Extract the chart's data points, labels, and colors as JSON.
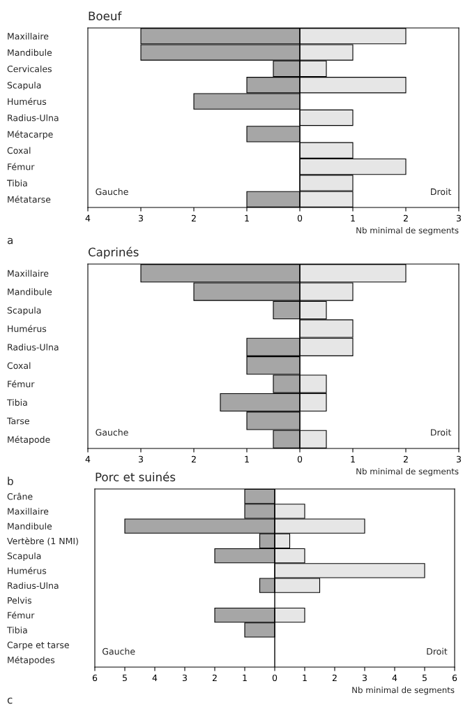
{
  "chart_data": [
    {
      "type": "bar",
      "orientation": "horizontal",
      "stacked": true,
      "title": "Boeuf",
      "xlabel": "Nb minimal de segments",
      "annotations": [
        "Gauche",
        "Droit",
        "a"
      ],
      "categories": [
        "Maxillaire",
        "Mandibule",
        "Cervicales",
        "Scapula",
        "Humérus",
        "Radius-Ulna",
        "Métacarpe",
        "Coxal",
        "Fémur",
        "Tibia",
        "Métatarse"
      ],
      "series": [
        {
          "color": "#a6a6a6",
          "values": [
            -3,
            -3,
            -0.5,
            -1,
            -2,
            null,
            -1,
            null,
            null,
            null,
            -1
          ]
        },
        {
          "color": "#e6e6e6",
          "values": [
            2,
            1,
            0.5,
            2,
            null,
            1,
            null,
            1,
            2,
            1,
            1
          ]
        }
      ],
      "xlim": [
        -4,
        3
      ],
      "xticks": [
        {
          "value": -4,
          "label": "4"
        },
        {
          "value": -3,
          "label": "3"
        },
        {
          "value": -2,
          "label": "2"
        },
        {
          "value": -1,
          "label": "1"
        },
        0,
        1,
        2,
        3
      ],
      "ref_lines": [
        {
          "axis": "x",
          "value": 0,
          "color": "#000000"
        }
      ],
      "grid": false
    },
    {
      "type": "bar",
      "orientation": "horizontal",
      "stacked": true,
      "title": "Caprinés",
      "xlabel": "Nb minimal de segments",
      "annotations": [
        "Gauche",
        "Droit",
        "b"
      ],
      "categories": [
        "Maxillaire",
        "Mandibule",
        "Scapula",
        "Humérus",
        "Radius-Ulna",
        "Coxal",
        "Fémur",
        "Tibia",
        "Tarse",
        "Métapode"
      ],
      "series": [
        {
          "color": "#a6a6a6",
          "values": [
            -3,
            -2,
            -0.5,
            null,
            -1,
            -1,
            -0.5,
            -1.5,
            -1,
            -0.5
          ]
        },
        {
          "color": "#e6e6e6",
          "values": [
            2,
            1,
            0.5,
            1,
            1,
            null,
            0.5,
            0.5,
            null,
            0.5
          ]
        }
      ],
      "xlim": [
        -4,
        3
      ],
      "xticks": [
        {
          "value": -4,
          "label": "4"
        },
        {
          "value": -3,
          "label": "3"
        },
        {
          "value": -2,
          "label": "2"
        },
        {
          "value": -1,
          "label": "1"
        },
        0,
        1,
        2,
        3
      ],
      "ref_lines": [
        {
          "axis": "x",
          "value": 0,
          "color": "#000000"
        }
      ],
      "grid": false
    },
    {
      "type": "bar",
      "orientation": "horizontal",
      "stacked": true,
      "title": "Porc et suinés",
      "xlabel": "Nb minimal de segments",
      "annotations": [
        "Gauche",
        "Droit",
        "c"
      ],
      "categories": [
        "Crâne",
        "Maxillaire",
        "Mandibule",
        "Vertèbre (1 NMI)",
        "Scapula",
        "Humérus",
        "Radius-Ulna",
        "Pelvis",
        "Fémur",
        "Tibia",
        "Carpe et tarse",
        "Métapodes"
      ],
      "series": [
        {
          "color": "#a6a6a6",
          "values": [
            -1,
            -1,
            -5,
            -0.5,
            -2,
            null,
            -0.5,
            null,
            -2,
            -1,
            null,
            null
          ]
        },
        {
          "color": "#e6e6e6",
          "values": [
            null,
            1,
            3,
            0.5,
            1,
            5,
            1.5,
            null,
            1,
            null,
            null,
            null
          ]
        }
      ],
      "xlim": [
        -6,
        6
      ],
      "xticks": [
        {
          "value": -6,
          "label": "6"
        },
        {
          "value": -5,
          "label": "5"
        },
        {
          "value": -4,
          "label": "4"
        },
        {
          "value": -3,
          "label": "3"
        },
        {
          "value": -2,
          "label": "2"
        },
        {
          "value": -1,
          "label": "1"
        },
        0,
        1,
        2,
        3,
        4,
        5,
        6
      ],
      "ref_lines": [
        {
          "axis": "x",
          "value": 0,
          "color": "#000000"
        }
      ],
      "grid": false
    }
  ]
}
